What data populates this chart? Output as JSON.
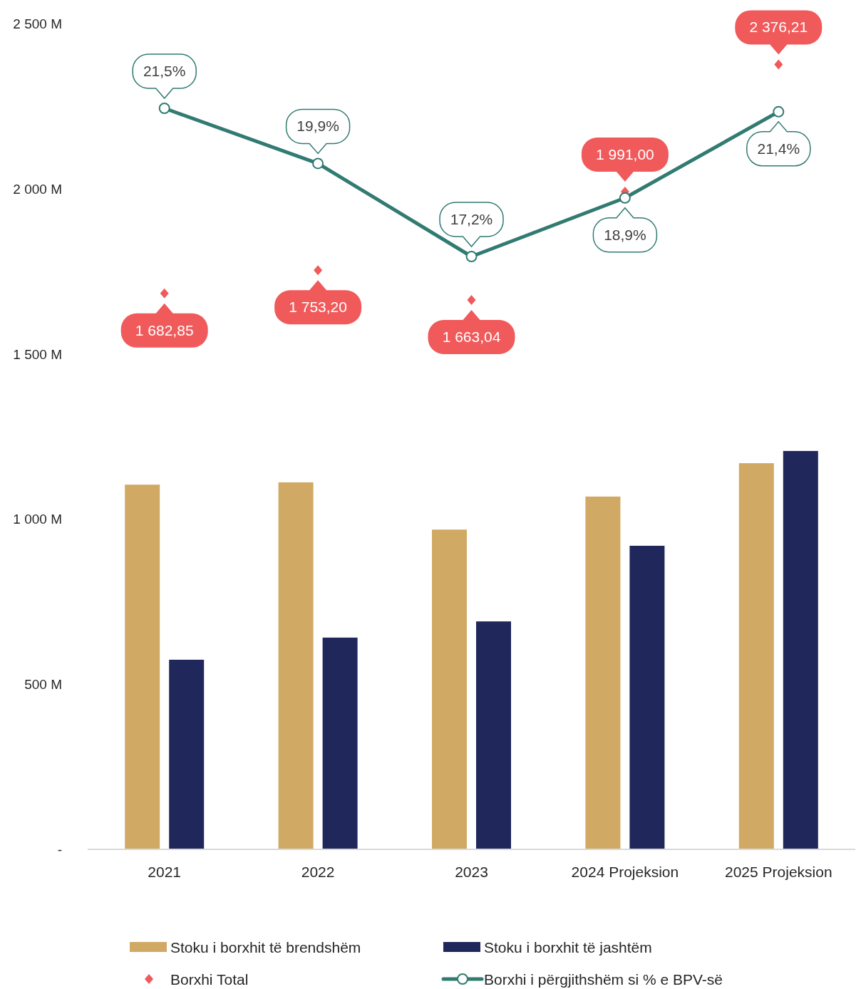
{
  "chart_data": {
    "type": "bar",
    "categories": [
      "2021",
      "2022",
      "2023",
      "2024 Projeksion",
      "2025 Projeksion"
    ],
    "series": [
      {
        "name": "Stoku i borxhit të brendshëm",
        "color": "#d0aa64",
        "values": [
          1104,
          1111,
          968,
          1068,
          1169
        ]
      },
      {
        "name": "Stoku i borxhit të jashtëm",
        "color": "#1f275b",
        "values": [
          574,
          641,
          690,
          919,
          1206
        ]
      },
      {
        "name": "Borxhi Total",
        "type": "scatter",
        "marker": "diamond",
        "color": "#f05a5b",
        "values": [
          1682.85,
          1753.2,
          1663.04,
          1991.0,
          2376.21
        ],
        "value_labels": [
          "1 682,85",
          "1 753,20",
          "1 663,04",
          "1 991,00",
          "2 376,21"
        ]
      },
      {
        "name": "Borxhi i përgjithshëm  si % e BPV-së",
        "type": "line",
        "axis": "y2",
        "marker": "circle",
        "color": "#317b72",
        "values": [
          21.5,
          19.9,
          17.2,
          18.9,
          21.4
        ],
        "value_labels": [
          "21,5%",
          "19,9%",
          "17,2%",
          "18,9%",
          "21,4%"
        ]
      }
    ],
    "ylim": [
      0,
      2500
    ],
    "yticks": [
      {
        "value": 0,
        "label": "-"
      },
      {
        "value": 500,
        "label": "500 M"
      },
      {
        "value": 1000,
        "label": "1 000 M"
      },
      {
        "value": 1500,
        "label": "1 500 M"
      },
      {
        "value": 2000,
        "label": "2 000 M"
      },
      {
        "value": 2500,
        "label": "2 500 M"
      }
    ],
    "tick_labels": "xy",
    "grid": false,
    "legend": "bottom"
  }
}
